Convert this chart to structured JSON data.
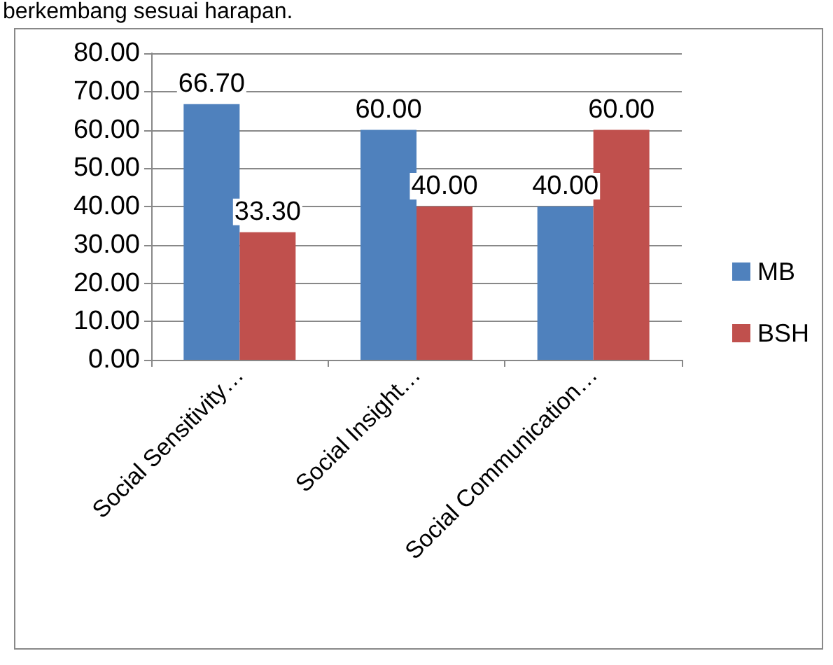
{
  "chart_data": {
    "type": "bar",
    "categories": [
      "Social Sensitivity…",
      "Social Insight…",
      "Social Communication…"
    ],
    "series": [
      {
        "name": "MB",
        "color": "#4f81bd",
        "values": [
          66.7,
          60,
          40
        ],
        "value_labels": [
          "66.70",
          "60.00",
          "40.00"
        ]
      },
      {
        "name": "BSH",
        "color": "#c0504d",
        "values": [
          33.3,
          40,
          60
        ],
        "value_labels": [
          "33.30",
          "40.00",
          "60.00"
        ]
      }
    ],
    "ylim": [
      0,
      80
    ],
    "yticks": [
      {
        "value": 0,
        "label": "0.00"
      },
      {
        "value": 10,
        "label": "10.00"
      },
      {
        "value": 20,
        "label": "20.00"
      },
      {
        "value": 30,
        "label": "30.00"
      },
      {
        "value": 40,
        "label": "40.00"
      },
      {
        "value": 50,
        "label": "50.00"
      },
      {
        "value": 60,
        "label": "60.00"
      },
      {
        "value": 70,
        "label": "70.00"
      },
      {
        "value": 80,
        "label": "80.00"
      }
    ],
    "grid": "y",
    "legend": "right",
    "annotations": [
      "berkembang sesuai harapan."
    ]
  }
}
